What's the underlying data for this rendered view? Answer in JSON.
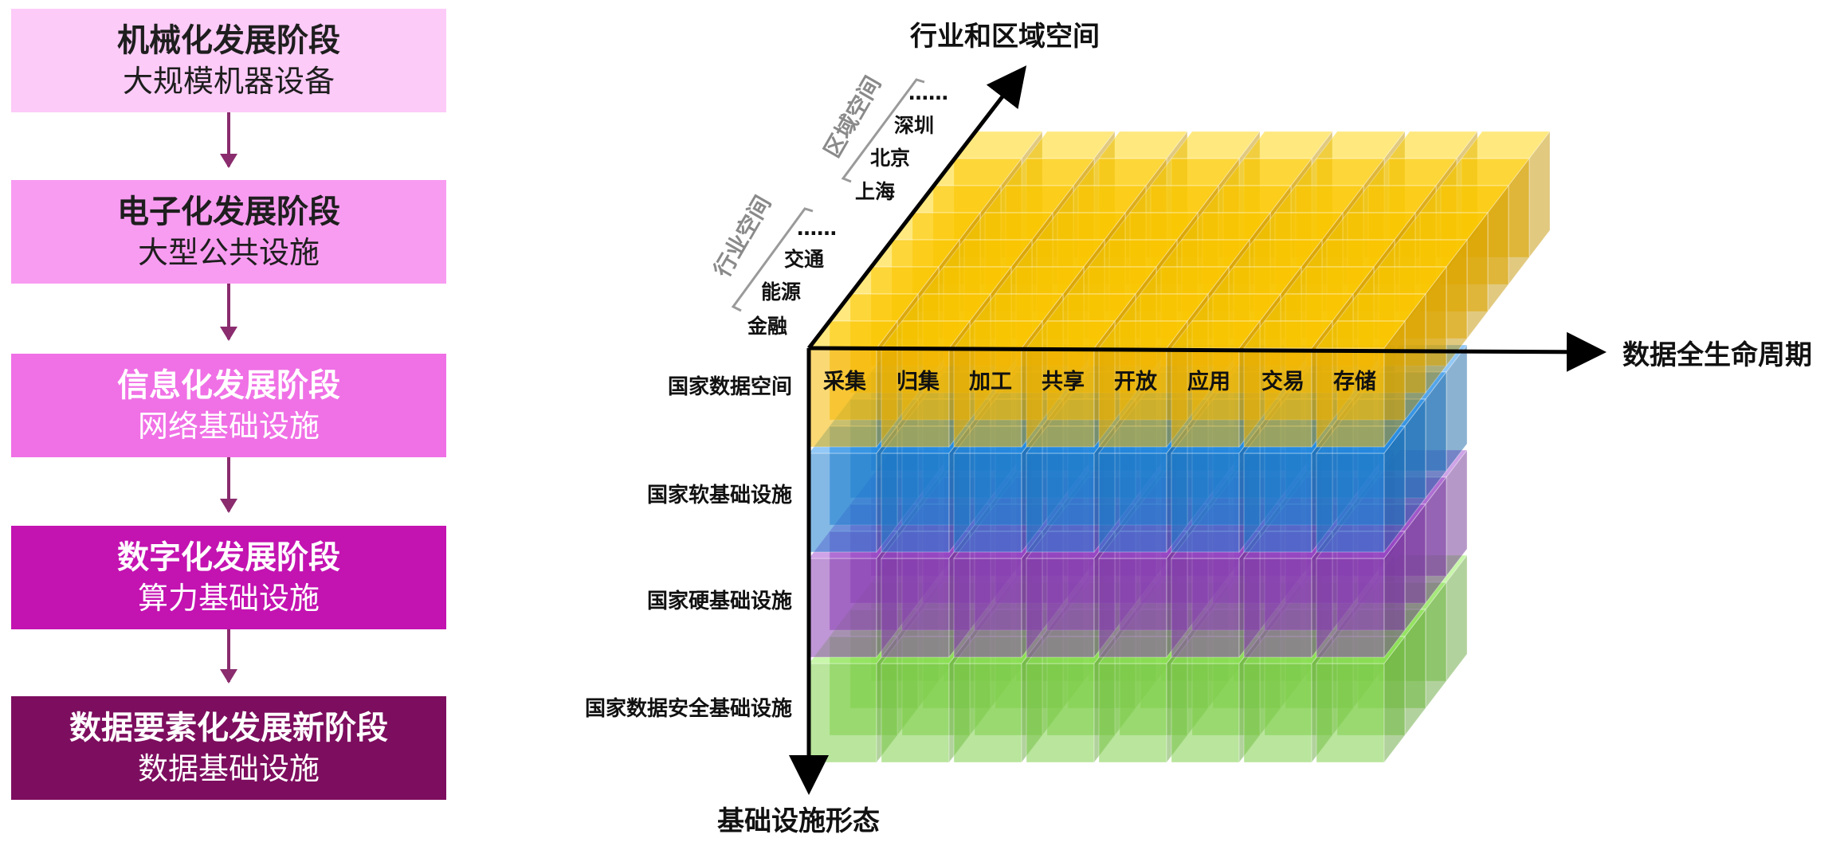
{
  "stages": [
    {
      "title": "机械化发展阶段",
      "subtitle": "大规模机器设备",
      "color": "#fdcbf8"
    },
    {
      "title": "电子化发展阶段",
      "subtitle": "大型公共设施",
      "color": "#f89cf1"
    },
    {
      "title": "信息化发展阶段",
      "subtitle": "网络基础设施",
      "color": "#f070e6"
    },
    {
      "title": "数字化发展阶段",
      "subtitle": "算力基础设施",
      "color": "#c313b1"
    },
    {
      "title": "数据要素化发展新阶段",
      "subtitle": "数据基础设施",
      "color": "#7d0d5e"
    }
  ],
  "cube": {
    "axis_depth_label": "行业和区域空间",
    "axis_x_label": "数据全生命周期",
    "axis_y_label": "基础设施形态",
    "lifecycle_stages": [
      "采集",
      "归集",
      "加工",
      "共享",
      "开放",
      "应用",
      "交易",
      "存储"
    ],
    "layers": [
      {
        "label": "国家数据空间",
        "color": "#f5b800"
      },
      {
        "label": "国家软基础设施",
        "color": "#1f7fd0"
      },
      {
        "label": "国家硬基础设施",
        "color": "#8a3fb5"
      },
      {
        "label": "国家数据安全基础设施",
        "color": "#7fcf4a"
      }
    ],
    "industry_group_label": "行业空间",
    "industry_items": [
      "金融",
      "能源",
      "交通",
      "……"
    ],
    "region_group_label": "区域空间",
    "region_items": [
      "上海",
      "北京",
      "深圳",
      "……"
    ]
  }
}
